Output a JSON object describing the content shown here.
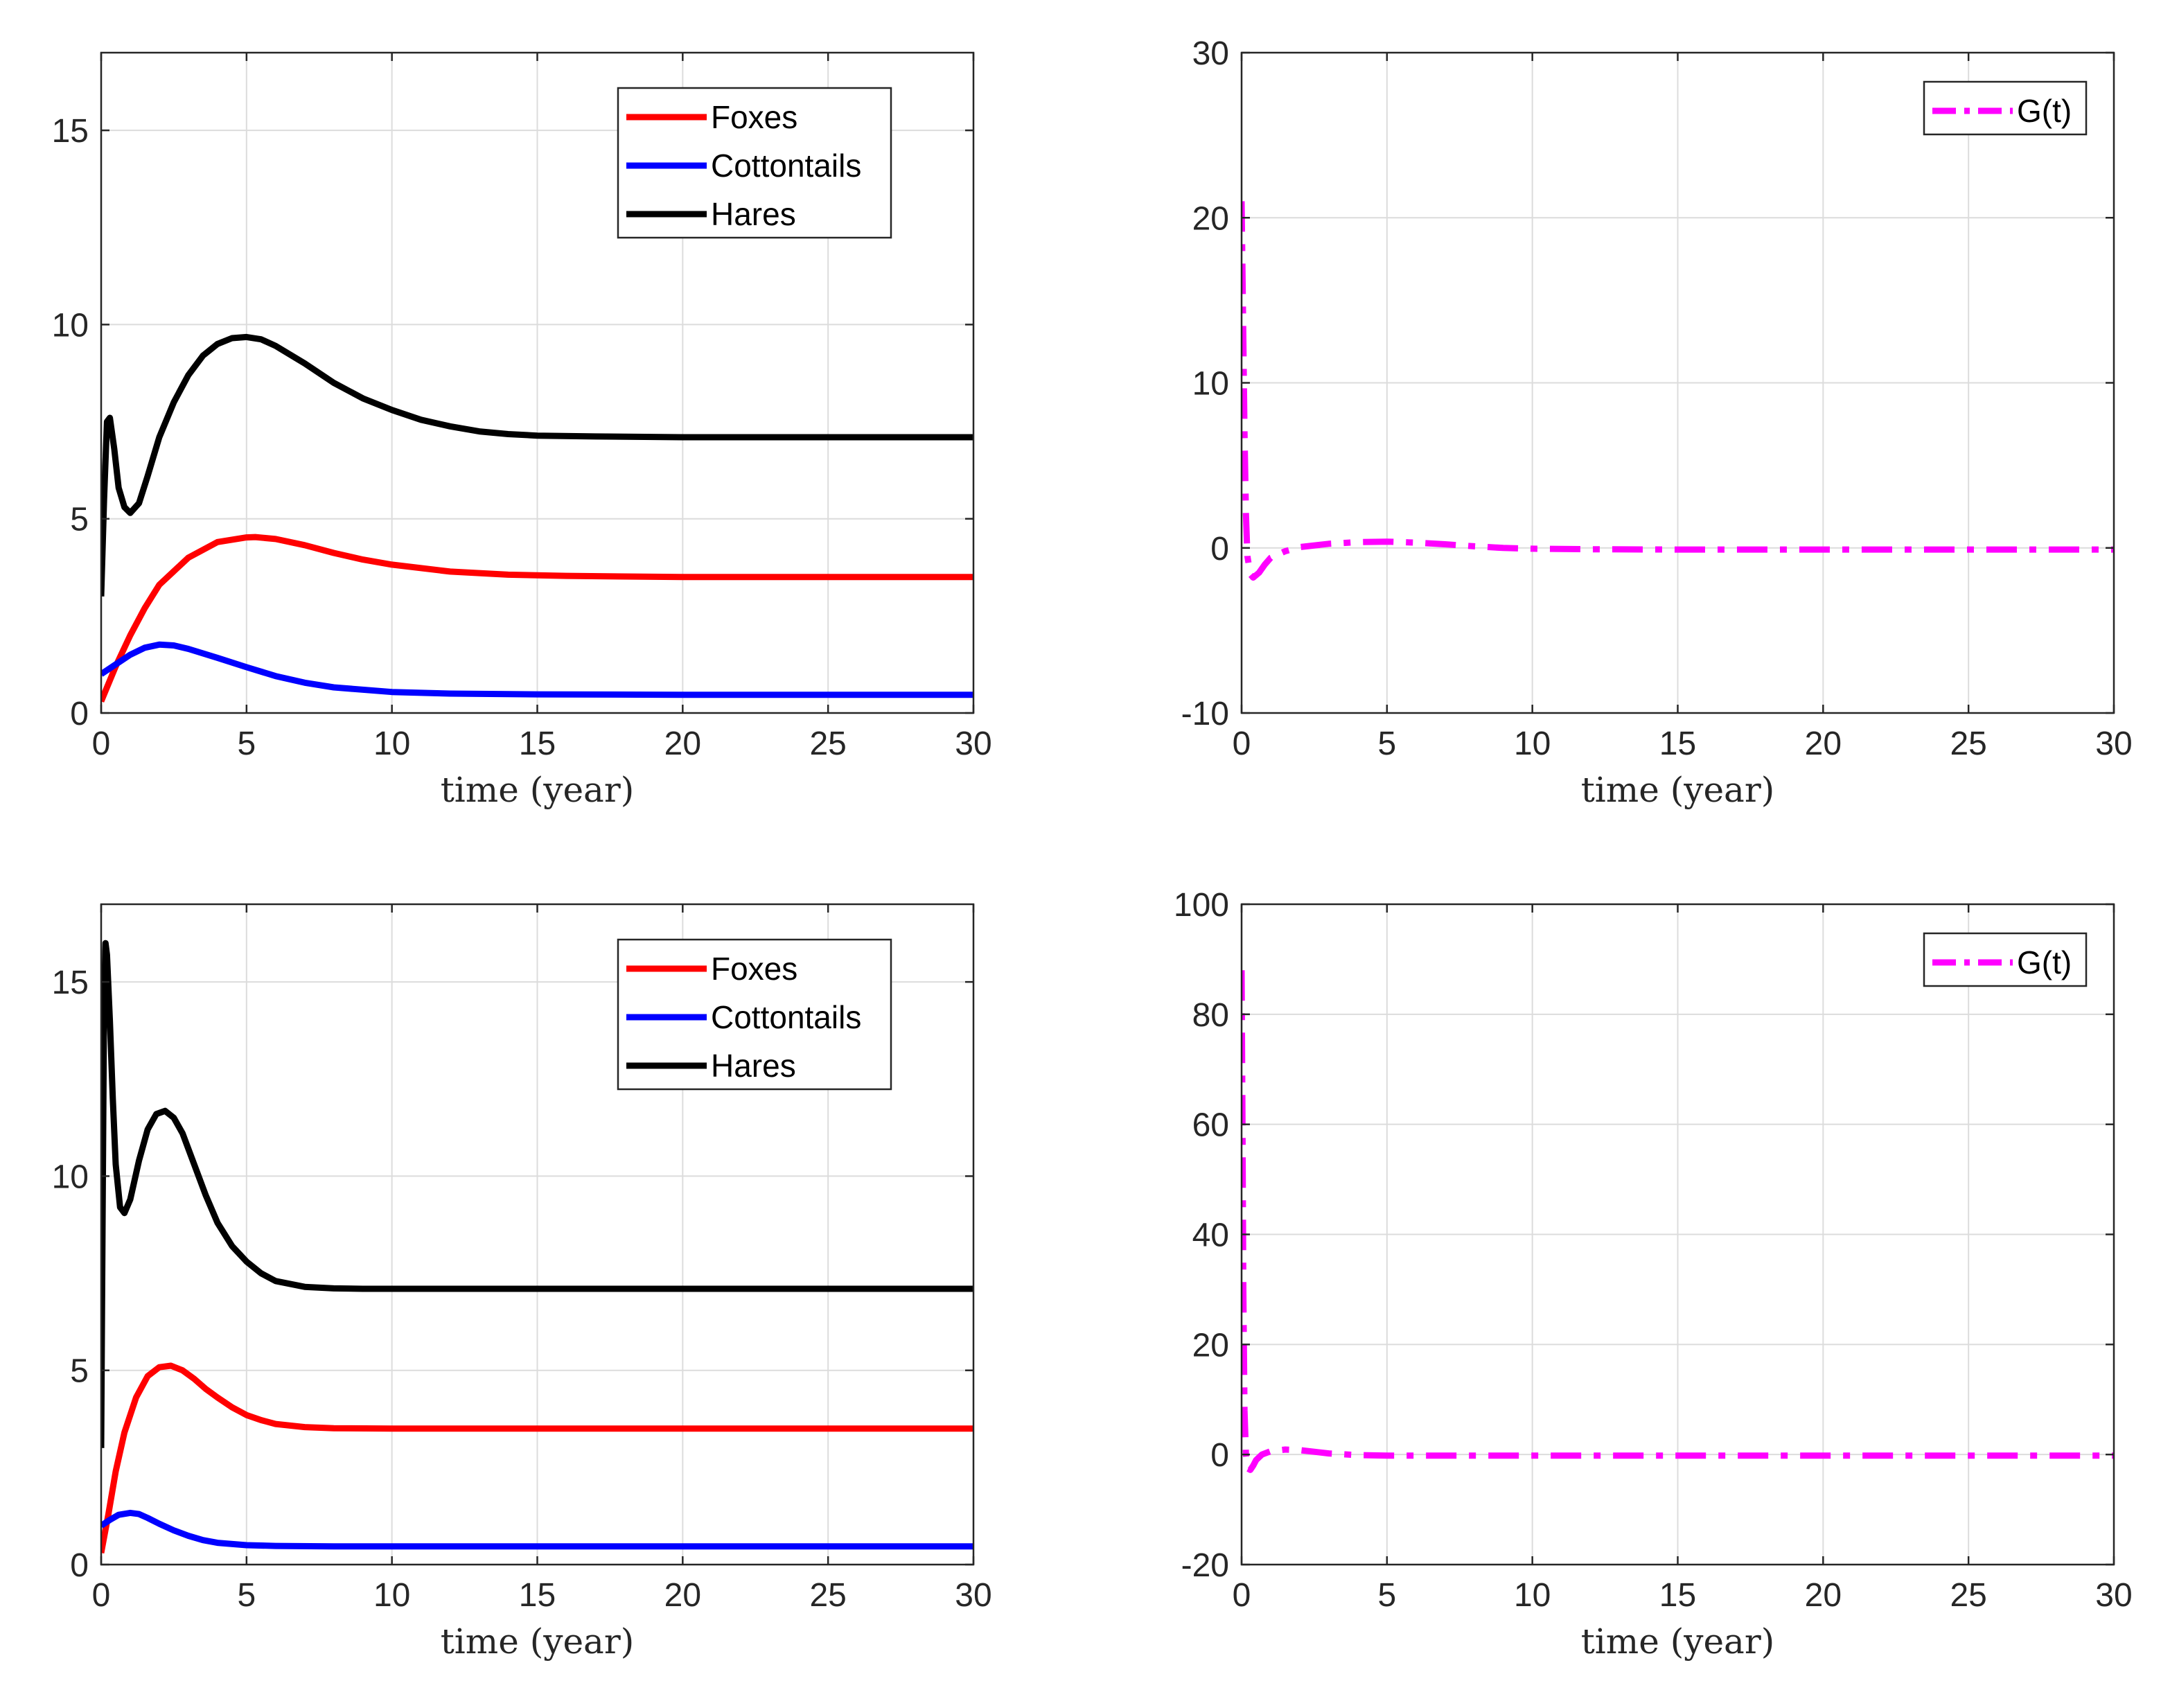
{
  "chart_data": [
    {
      "type": "line",
      "title": "",
      "xlabel": "time (year)",
      "ylabel": "",
      "xlim": [
        0,
        30
      ],
      "ylim": [
        0,
        17
      ],
      "xticks": [
        0,
        5,
        10,
        15,
        20,
        25,
        30
      ],
      "yticks": [
        0,
        5,
        10,
        15
      ],
      "grid": true,
      "legend_position": "top-right",
      "series": [
        {
          "name": "Foxes",
          "color": "#ff0000",
          "dash": "solid",
          "x": [
            0,
            0.5,
            1,
            1.5,
            2,
            3,
            4,
            5,
            5.3,
            6,
            7,
            8,
            9,
            10,
            12,
            14,
            16,
            20,
            25,
            30
          ],
          "y": [
            0.3,
            1.2,
            2.0,
            2.7,
            3.3,
            4.0,
            4.4,
            4.52,
            4.53,
            4.48,
            4.32,
            4.12,
            3.95,
            3.82,
            3.64,
            3.56,
            3.53,
            3.5,
            3.5,
            3.5
          ]
        },
        {
          "name": "Cottontails",
          "color": "#0000ff",
          "dash": "solid",
          "x": [
            0,
            0.5,
            1,
            1.5,
            2,
            2.5,
            3,
            4,
            5,
            6,
            7,
            8,
            10,
            12,
            15,
            20,
            25,
            30
          ],
          "y": [
            1.0,
            1.25,
            1.5,
            1.68,
            1.76,
            1.74,
            1.65,
            1.42,
            1.18,
            0.95,
            0.78,
            0.66,
            0.54,
            0.5,
            0.48,
            0.47,
            0.47,
            0.47
          ]
        },
        {
          "name": "Hares",
          "color": "#000000",
          "dash": "solid",
          "x": [
            0,
            0.1,
            0.2,
            0.3,
            0.45,
            0.6,
            0.8,
            1.0,
            1.3,
            1.6,
            2.0,
            2.5,
            3,
            3.5,
            4,
            4.5,
            5,
            5.5,
            6,
            7,
            8,
            9,
            10,
            11,
            12,
            13,
            14,
            15,
            17,
            20,
            25,
            30
          ],
          "y": [
            3.0,
            5.5,
            7.5,
            7.6,
            6.8,
            5.8,
            5.3,
            5.15,
            5.4,
            6.1,
            7.1,
            8.0,
            8.7,
            9.2,
            9.5,
            9.65,
            9.68,
            9.62,
            9.45,
            9.0,
            8.5,
            8.1,
            7.8,
            7.55,
            7.38,
            7.25,
            7.18,
            7.14,
            7.12,
            7.1,
            7.1,
            7.1
          ]
        }
      ]
    },
    {
      "type": "line",
      "title": "",
      "xlabel": "time (year)",
      "ylabel": "",
      "xlim": [
        0,
        30
      ],
      "ylim": [
        -10,
        30
      ],
      "xticks": [
        0,
        5,
        10,
        15,
        20,
        25,
        30
      ],
      "yticks": [
        -10,
        0,
        10,
        20,
        30
      ],
      "grid": true,
      "legend_position": "top-right",
      "series": [
        {
          "name": "G(t)",
          "color": "#ff00ff",
          "dash": "dash-dot",
          "x": [
            0,
            0.05,
            0.1,
            0.15,
            0.2,
            0.3,
            0.4,
            0.6,
            0.8,
            1.0,
            1.5,
            2,
            3,
            4,
            5,
            6,
            7,
            8,
            9,
            10,
            12,
            15,
            20,
            25,
            30
          ],
          "y": [
            21,
            14,
            7,
            2,
            -0.5,
            -1.6,
            -1.8,
            -1.5,
            -1.0,
            -0.6,
            -0.2,
            0.05,
            0.25,
            0.35,
            0.38,
            0.32,
            0.22,
            0.1,
            0.0,
            -0.05,
            -0.08,
            -0.1,
            -0.1,
            -0.1,
            -0.1
          ]
        }
      ]
    },
    {
      "type": "line",
      "title": "",
      "xlabel": "time (year)",
      "ylabel": "",
      "xlim": [
        0,
        30
      ],
      "ylim": [
        0,
        17
      ],
      "xticks": [
        0,
        5,
        10,
        15,
        20,
        25,
        30
      ],
      "yticks": [
        0,
        5,
        10,
        15
      ],
      "grid": true,
      "legend_position": "top-right",
      "series": [
        {
          "name": "Foxes",
          "color": "#ff0000",
          "dash": "solid",
          "x": [
            0,
            0.25,
            0.5,
            0.8,
            1.2,
            1.6,
            2.0,
            2.4,
            2.8,
            3.2,
            3.6,
            4,
            4.5,
            5,
            5.5,
            6,
            7,
            8,
            10,
            15,
            20,
            25,
            30
          ],
          "y": [
            0.3,
            1.3,
            2.4,
            3.4,
            4.3,
            4.85,
            5.08,
            5.12,
            5.0,
            4.78,
            4.52,
            4.3,
            4.05,
            3.85,
            3.72,
            3.62,
            3.54,
            3.51,
            3.5,
            3.5,
            3.5,
            3.5,
            3.5
          ]
        },
        {
          "name": "Cottontails",
          "color": "#0000ff",
          "dash": "solid",
          "x": [
            0,
            0.3,
            0.6,
            1.0,
            1.3,
            1.6,
            2,
            2.5,
            3,
            3.5,
            4,
            5,
            6,
            8,
            10,
            15,
            20,
            25,
            30
          ],
          "y": [
            1.0,
            1.15,
            1.28,
            1.33,
            1.3,
            1.2,
            1.05,
            0.88,
            0.74,
            0.63,
            0.56,
            0.5,
            0.48,
            0.47,
            0.47,
            0.47,
            0.47,
            0.47,
            0.47
          ]
        },
        {
          "name": "Hares",
          "color": "#000000",
          "dash": "solid",
          "x": [
            0,
            0.05,
            0.1,
            0.15,
            0.2,
            0.3,
            0.4,
            0.5,
            0.65,
            0.8,
            1.0,
            1.3,
            1.6,
            1.9,
            2.2,
            2.5,
            2.8,
            3.2,
            3.6,
            4.0,
            4.5,
            5,
            5.5,
            6,
            7,
            8,
            9,
            10,
            15,
            20,
            25,
            30
          ],
          "y": [
            3.0,
            9.0,
            14.5,
            16.0,
            15.7,
            14.0,
            12.0,
            10.3,
            9.2,
            9.05,
            9.4,
            10.4,
            11.2,
            11.6,
            11.68,
            11.5,
            11.1,
            10.3,
            9.5,
            8.8,
            8.2,
            7.8,
            7.5,
            7.3,
            7.15,
            7.11,
            7.1,
            7.1,
            7.1,
            7.1,
            7.1,
            7.1
          ]
        }
      ]
    },
    {
      "type": "line",
      "title": "",
      "xlabel": "time (year)",
      "ylabel": "",
      "xlim": [
        0,
        30
      ],
      "ylim": [
        -20,
        100
      ],
      "xticks": [
        0,
        5,
        10,
        15,
        20,
        25,
        30
      ],
      "yticks": [
        -20,
        0,
        20,
        40,
        60,
        80,
        100
      ],
      "grid": true,
      "legend_position": "top-right",
      "series": [
        {
          "name": "G(t)",
          "color": "#ff00ff",
          "dash": "dash-dot",
          "x": [
            0,
            0.03,
            0.06,
            0.1,
            0.15,
            0.2,
            0.3,
            0.4,
            0.5,
            0.7,
            1.0,
            1.5,
            2,
            2.5,
            3,
            4,
            5,
            7,
            10,
            15,
            20,
            25,
            30
          ],
          "y": [
            88,
            60,
            30,
            8,
            0,
            -2.5,
            -2.8,
            -2.0,
            -1.0,
            0.0,
            0.6,
            0.9,
            0.8,
            0.5,
            0.2,
            -0.1,
            -0.2,
            -0.2,
            -0.2,
            -0.2,
            -0.2,
            -0.2,
            -0.2
          ]
        }
      ]
    }
  ]
}
